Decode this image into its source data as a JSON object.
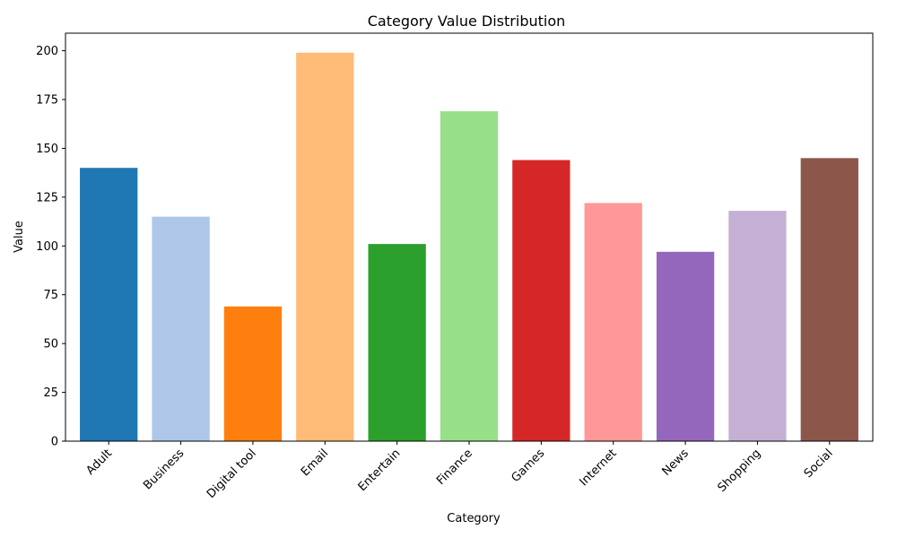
{
  "chart_data": {
    "type": "bar",
    "title": "Category Value Distribution",
    "xlabel": "Category",
    "ylabel": "Value",
    "ylim": [
      0,
      209
    ],
    "yticks": [
      0,
      25,
      50,
      75,
      100,
      125,
      150,
      175,
      200
    ],
    "categories": [
      "Adult",
      "Business",
      "Digital tool",
      "Email",
      "Entertain",
      "Finance",
      "Games",
      "Internet",
      "News",
      "Shopping",
      "Social"
    ],
    "values": [
      140,
      115,
      69,
      199,
      101,
      169,
      144,
      122,
      97,
      118,
      145
    ],
    "colors": [
      "#1f77b4",
      "#aec7e8",
      "#ff7f0e",
      "#ffbb78",
      "#2ca02c",
      "#98df8a",
      "#d62728",
      "#ff9896",
      "#9467bd",
      "#c5b0d5",
      "#8c564b"
    ],
    "grid": false,
    "legend": "none"
  }
}
